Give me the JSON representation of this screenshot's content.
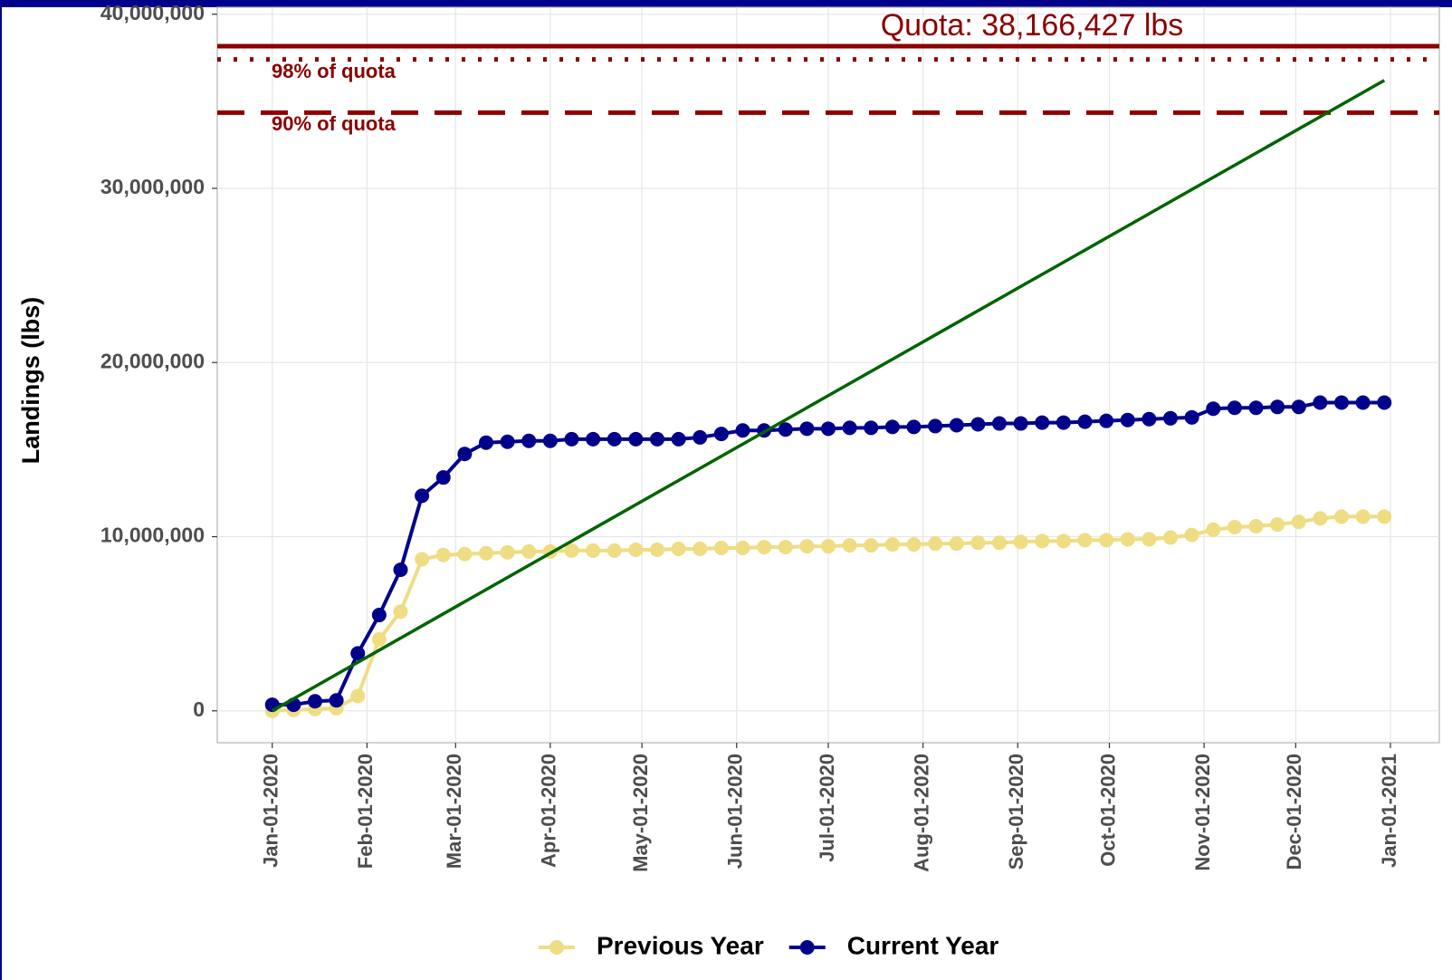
{
  "chart_data": {
    "type": "line",
    "y_label": "Landings (lbs)",
    "x": [
      "2020-01-01",
      "2020-01-08",
      "2020-01-15",
      "2020-01-22",
      "2020-01-29",
      "2020-02-05",
      "2020-02-12",
      "2020-02-19",
      "2020-02-26",
      "2020-03-04",
      "2020-03-11",
      "2020-03-18",
      "2020-03-25",
      "2020-04-01",
      "2020-04-08",
      "2020-04-15",
      "2020-04-22",
      "2020-04-29",
      "2020-05-06",
      "2020-05-13",
      "2020-05-20",
      "2020-05-27",
      "2020-06-03",
      "2020-06-10",
      "2020-06-17",
      "2020-06-24",
      "2020-07-01",
      "2020-07-08",
      "2020-07-15",
      "2020-07-22",
      "2020-07-29",
      "2020-08-05",
      "2020-08-12",
      "2020-08-19",
      "2020-08-26",
      "2020-09-02",
      "2020-09-09",
      "2020-09-16",
      "2020-09-23",
      "2020-09-30",
      "2020-10-07",
      "2020-10-14",
      "2020-10-21",
      "2020-10-28",
      "2020-11-04",
      "2020-11-11",
      "2020-11-18",
      "2020-11-25",
      "2020-12-02",
      "2020-12-09",
      "2020-12-16",
      "2020-12-23",
      "2020-12-30"
    ],
    "series": [
      {
        "name": "Previous Year",
        "color": "#eedd82",
        "values": [
          0,
          50000,
          100000,
          150000,
          850000,
          4100000,
          5700000,
          8700000,
          8950000,
          9000000,
          9050000,
          9100000,
          9150000,
          9150000,
          9200000,
          9200000,
          9200000,
          9250000,
          9250000,
          9300000,
          9300000,
          9350000,
          9350000,
          9400000,
          9400000,
          9450000,
          9450000,
          9500000,
          9500000,
          9550000,
          9550000,
          9600000,
          9600000,
          9650000,
          9650000,
          9700000,
          9750000,
          9750000,
          9800000,
          9800000,
          9850000,
          9850000,
          9950000,
          10100000,
          10400000,
          10550000,
          10600000,
          10700000,
          10850000,
          11050000,
          11150000,
          11150000,
          11150000
        ]
      },
      {
        "name": "Current Year",
        "color": "#00008b",
        "values": [
          350000,
          350000,
          550000,
          600000,
          3300000,
          5500000,
          8100000,
          12350000,
          13400000,
          14750000,
          15400000,
          15450000,
          15500000,
          15500000,
          15600000,
          15600000,
          15600000,
          15600000,
          15600000,
          15600000,
          15700000,
          15900000,
          16100000,
          16100000,
          16150000,
          16200000,
          16200000,
          16250000,
          16250000,
          16300000,
          16300000,
          16350000,
          16400000,
          16450000,
          16500000,
          16500000,
          16550000,
          16550000,
          16600000,
          16650000,
          16700000,
          16750000,
          16800000,
          16850000,
          17350000,
          17400000,
          17400000,
          17450000,
          17450000,
          17700000,
          17700000,
          17700000,
          17700000
        ]
      }
    ],
    "trend_line": {
      "color": "#006400",
      "x": [
        "2020-01-01",
        "2020-12-30"
      ],
      "values": [
        0,
        36200000
      ]
    },
    "reference_lines": [
      {
        "label": "Quota: 38,166,427 lbs",
        "value": 38166427,
        "style": "solid",
        "color": "#8b0000"
      },
      {
        "label": "98% of quota",
        "value": 37403098,
        "style": "dotted",
        "color": "#8b0000"
      },
      {
        "label": "90% of quota",
        "value": 34349784,
        "style": "dashed",
        "color": "#8b0000"
      }
    ],
    "xlim": [
      "2019-12-14",
      "2021-01-17"
    ],
    "xticks": [
      {
        "value": "2020-01-01",
        "label": "Jan-01-2020"
      },
      {
        "value": "2020-02-01",
        "label": "Feb-01-2020"
      },
      {
        "value": "2020-03-01",
        "label": "Mar-01-2020"
      },
      {
        "value": "2020-04-01",
        "label": "Apr-01-2020"
      },
      {
        "value": "2020-05-01",
        "label": "May-01-2020"
      },
      {
        "value": "2020-06-01",
        "label": "Jun-01-2020"
      },
      {
        "value": "2020-07-01",
        "label": "Jul-01-2020"
      },
      {
        "value": "2020-08-01",
        "label": "Aug-01-2020"
      },
      {
        "value": "2020-09-01",
        "label": "Sep-01-2020"
      },
      {
        "value": "2020-10-01",
        "label": "Oct-01-2020"
      },
      {
        "value": "2020-11-01",
        "label": "Nov-01-2020"
      },
      {
        "value": "2020-12-01",
        "label": "Dec-01-2020"
      },
      {
        "value": "2021-01-01",
        "label": "Jan-01-2021"
      }
    ],
    "ylim": [
      -1830000,
      40400000
    ],
    "yticks": [
      0,
      {
        "value": 10000000,
        "label": "10,000,000"
      },
      {
        "value": 20000000,
        "label": "20,000,000"
      },
      {
        "value": 30000000,
        "label": "30,000,000"
      },
      {
        "value": 40000000,
        "label": "40,000,000"
      }
    ],
    "grid": true,
    "legend": "bottom"
  }
}
